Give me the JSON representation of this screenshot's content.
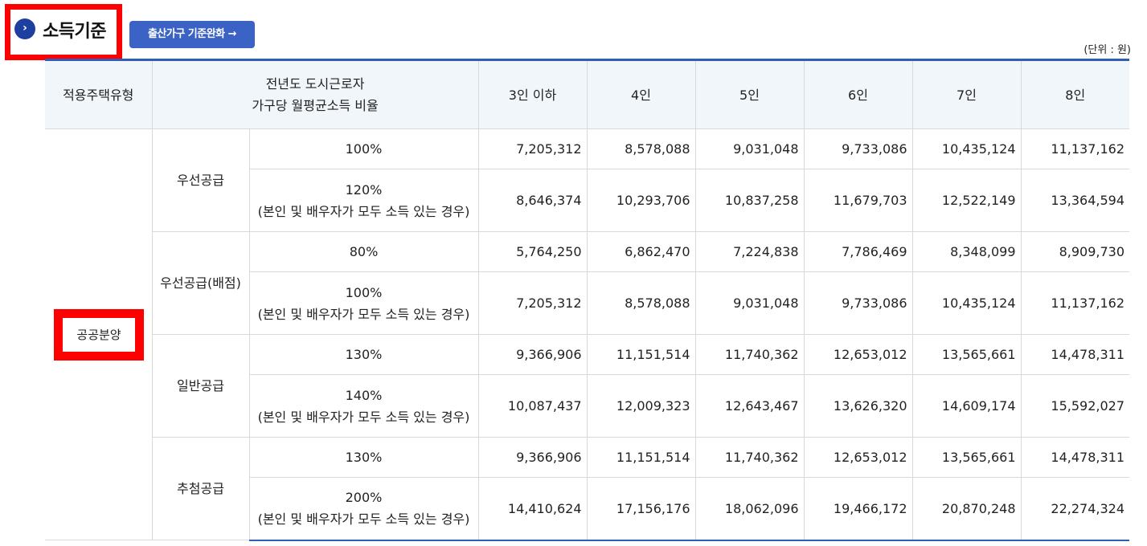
{
  "section": {
    "title": "소득기준",
    "button_label": "출산가구 기준완화 →",
    "unit": "(단위 : 원)"
  },
  "table": {
    "headers": {
      "type": "적용주택유형",
      "ratio_line1": "전년도 도시근로자",
      "ratio_line2": "가구당 월평균소득 비율",
      "cols": [
        "3인 이하",
        "4인",
        "5인",
        "6인",
        "7인",
        "8인"
      ]
    },
    "housing_type": "공공분양",
    "groups": [
      {
        "name": "우선공급",
        "rows": [
          {
            "pct": "100%",
            "note": "",
            "values": [
              "7,205,312",
              "8,578,088",
              "9,031,048",
              "9,733,086",
              "10,435,124",
              "11,137,162"
            ]
          },
          {
            "pct": "120%",
            "note": "(본인 및 배우자가 모두 소득 있는 경우)",
            "values": [
              "8,646,374",
              "10,293,706",
              "10,837,258",
              "11,679,703",
              "12,522,149",
              "13,364,594"
            ]
          }
        ]
      },
      {
        "name": "우선공급(배점)",
        "rows": [
          {
            "pct": "80%",
            "note": "",
            "values": [
              "5,764,250",
              "6,862,470",
              "7,224,838",
              "7,786,469",
              "8,348,099",
              "8,909,730"
            ]
          },
          {
            "pct": "100%",
            "note": "(본인 및 배우자가 모두 소득 있는 경우)",
            "values": [
              "7,205,312",
              "8,578,088",
              "9,031,048",
              "9,733,086",
              "10,435,124",
              "11,137,162"
            ]
          }
        ]
      },
      {
        "name": "일반공급",
        "rows": [
          {
            "pct": "130%",
            "note": "",
            "values": [
              "9,366,906",
              "11,151,514",
              "11,740,362",
              "12,653,012",
              "13,565,661",
              "14,478,311"
            ]
          },
          {
            "pct": "140%",
            "note": "(본인 및 배우자가 모두 소득 있는 경우)",
            "values": [
              "10,087,437",
              "12,009,323",
              "12,643,467",
              "13,626,320",
              "14,609,174",
              "15,592,027"
            ]
          }
        ]
      },
      {
        "name": "추첨공급",
        "rows": [
          {
            "pct": "130%",
            "note": "",
            "values": [
              "9,366,906",
              "11,151,514",
              "11,740,362",
              "12,653,012",
              "13,565,661",
              "14,478,311"
            ]
          },
          {
            "pct": "200%",
            "note": "(본인 및 배우자가 모두 소득 있는 경우)",
            "values": [
              "14,410,624",
              "17,156,176",
              "18,062,096",
              "19,466,172",
              "20,870,248",
              "22,274,324"
            ]
          }
        ]
      }
    ]
  },
  "colors": {
    "accent": "#2f5fb4",
    "button": "#3b63c6",
    "header_bg": "#f1f6fb",
    "highlight": "#ff0000"
  }
}
